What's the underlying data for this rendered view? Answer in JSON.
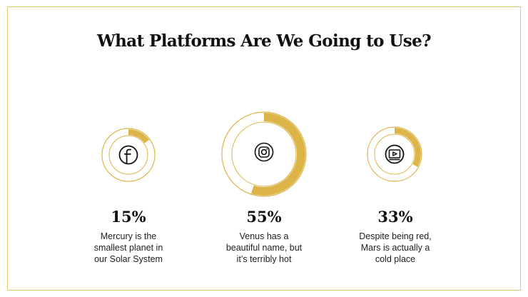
{
  "slide": {
    "title": "What Platforms Are We Going to Use?",
    "accent_color": "#dcb448",
    "platforms": [
      {
        "icon": "facebook-icon",
        "percent_value": 15,
        "percent_label": "15%",
        "description_lines": [
          "Mercury is the",
          "smallest planet in",
          "our Solar System"
        ]
      },
      {
        "icon": "instagram-icon",
        "percent_value": 55,
        "percent_label": "55%",
        "description_lines": [
          "Venus has a",
          "beautiful name, but",
          "it’s terribly hot"
        ]
      },
      {
        "icon": "video-icon",
        "percent_value": 33,
        "percent_label": "33%",
        "description_lines": [
          "Despite being red,",
          "Mars is actually a",
          "cold place"
        ]
      }
    ]
  }
}
